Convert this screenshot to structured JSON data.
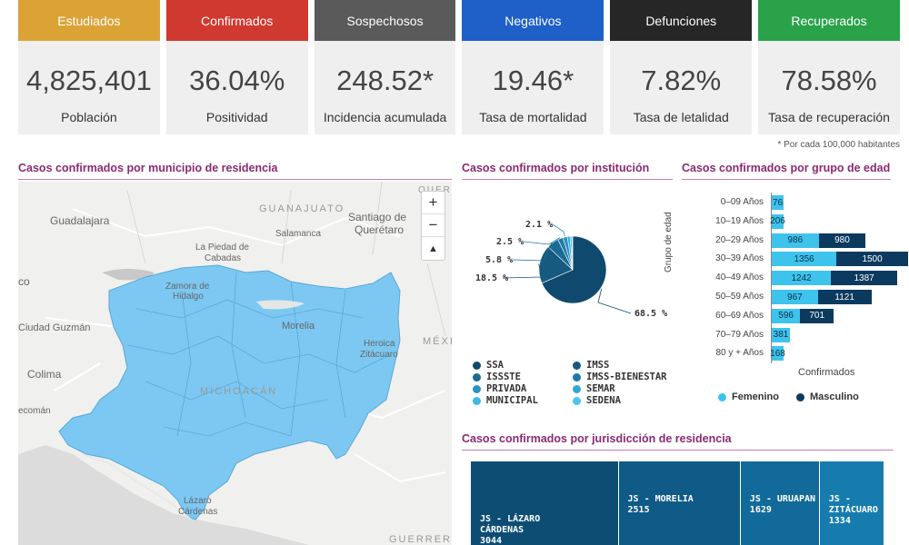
{
  "kpis": [
    {
      "header": "Estudiados",
      "value": "4,825,401",
      "label": "Población",
      "color": "#dba336"
    },
    {
      "header": "Confirmados",
      "value": "36.04%",
      "label": "Positividad",
      "color": "#d0392f"
    },
    {
      "header": "Sospechosos",
      "value": "248.52*",
      "label": "Incidencia acumulada",
      "color": "#5a5a5a"
    },
    {
      "header": "Negativos",
      "value": "19.46*",
      "label": "Tasa de mortalidad",
      "color": "#1e5fc8"
    },
    {
      "header": "Defunciones",
      "value": "7.82%",
      "label": "Tasa de letalidad",
      "color": "#262626"
    },
    {
      "header": "Recuperados",
      "value": "78.58%",
      "label": "Tasa de recuperación",
      "color": "#29a24a"
    }
  ],
  "footnote": "* Por cada 100,000 habitantes",
  "map": {
    "title": "Casos confirmados por municipio de residencia",
    "zoom_in": "+",
    "zoom_out": "−",
    "reset": "▲",
    "labels": {
      "guanajuato": "GUANAJUATO",
      "guadalajara": "Guadalajara",
      "santiago": "Santiago de",
      "queretaro": "Querétaro",
      "salamanca": "Salamanca",
      "lapiedad": "La Piedad de",
      "cabadas": "Cabadas",
      "zamora": "Zamora de",
      "hidalgo": "Hidalgo",
      "morelia": "Morelia",
      "heroica": "Heroica",
      "zitacuaro": "Zitácuaro",
      "mexico": "MÉXI",
      "guzman": "Ciudad Guzmán",
      "colima": "Colima",
      "michoacan": "MICHOACÁN",
      "tecoman": "ecomán",
      "lazaro": "Lázaro",
      "cardenas": "Cárdenas",
      "guerrero": "GUERRERO",
      "co": "co",
      "quere": "QUERE"
    },
    "fill_color": "#7cc8f2"
  },
  "pie": {
    "title": "Casos confirmados por institución",
    "slices": [
      {
        "name": "SSA",
        "value": 68.5,
        "label": "68.5 %",
        "color": "#0f4a6e"
      },
      {
        "name": "IMSS",
        "value": 18.5,
        "label": "18.5 %",
        "color": "#165a80"
      },
      {
        "name": "ISSSTE",
        "value": 5.8,
        "label": "5.8 %",
        "color": "#1a6a92"
      },
      {
        "name": "IMSS-BIENESTAR",
        "value": 2.5,
        "label": "2.5 %",
        "color": "#1f7ba6"
      },
      {
        "name": "PRIVADA",
        "value": 2.1,
        "label": "2.1 %",
        "color": "#2a91c0"
      },
      {
        "name": "SEMAR",
        "value": 1.3,
        "label": "",
        "color": "#35a6d2"
      },
      {
        "name": "MUNICIPAL",
        "value": 0.9,
        "label": "",
        "color": "#40b8e0"
      },
      {
        "name": "SEDENA",
        "value": 0.4,
        "label": "",
        "color": "#4fc6ea"
      }
    ],
    "legend_order": [
      "SSA",
      "IMSS",
      "ISSSTE",
      "IMSS-BIENESTAR",
      "PRIVADA",
      "SEMAR",
      "MUNICIPAL",
      "SEDENA"
    ]
  },
  "chart_data": {
    "type": "bar",
    "title": "Casos confirmados por grupo de edad",
    "xlabel": "Confirmados",
    "ylabel": "Grupo de edad",
    "categories": [
      "0–09 Años",
      "10–19 Años",
      "20–29 Años",
      "30–39 Años",
      "40–49 Años",
      "50–59 Años",
      "60–69 Años",
      "70–79 Años",
      "80 y + Años"
    ],
    "series": [
      {
        "name": "Femenino",
        "values": [
          76,
          206,
          986,
          1356,
          1242,
          967,
          596,
          381,
          168
        ],
        "color": "#3ec3ec"
      },
      {
        "name": "Masculino",
        "values": [
          null,
          null,
          980,
          1500,
          1387,
          1121,
          701,
          null,
          null
        ],
        "color": "#0b3a5e"
      }
    ]
  },
  "treemap": {
    "title": "Casos confirmados por jurisdicción de residencia",
    "tiles": [
      {
        "name": "JS - LÁZARO CÁRDENAS",
        "line1": "JS - LÁZARO",
        "line2": "CÁRDENAS",
        "value": "3044",
        "color": "#0d4d74"
      },
      {
        "name": "JS - MORELIA",
        "line1": "JS - MORELIA",
        "line2": "",
        "value": "2515",
        "color": "#0f5a86"
      },
      {
        "name": "JS - URUAPAN",
        "line1": "JS - URUAPAN",
        "line2": "",
        "value": "1629",
        "color": "#126a9a"
      },
      {
        "name": "JS - ZITÁCUARO",
        "line1": "JS - ZITÁCUARO",
        "line2": "",
        "value": "1334",
        "color": "#167cae"
      }
    ]
  }
}
